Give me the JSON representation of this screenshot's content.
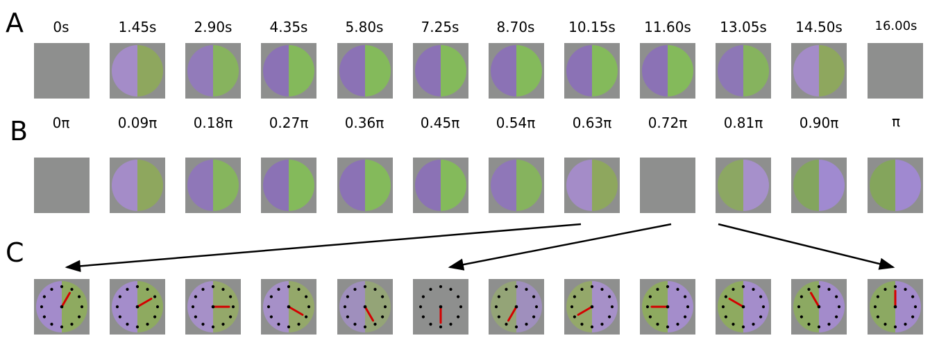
{
  "rows": [
    {
      "letter": "A",
      "labels": [
        "0s",
        "1.45s",
        "2.90s",
        "4.35s",
        "5.80s",
        "7.25s",
        "8.70s",
        "10.15s",
        "11.60s",
        "13.05s",
        "14.50s",
        "16.00s"
      ],
      "tiles": [
        {
          "left": null,
          "right": null
        },
        {
          "left": "#a48cc8",
          "right": "#8ea75e"
        },
        {
          "left": "#927bba",
          "right": "#87b35e"
        },
        {
          "left": "#8b72b5",
          "right": "#84b95b"
        },
        {
          "left": "#8b72b5",
          "right": "#84ba5b"
        },
        {
          "left": "#8b72b5",
          "right": "#84ba5b"
        },
        {
          "left": "#8b72b5",
          "right": "#84ba5b"
        },
        {
          "left": "#8b72b5",
          "right": "#84ba5b"
        },
        {
          "left": "#8b72b5",
          "right": "#84ba5b"
        },
        {
          "left": "#8d77b6",
          "right": "#86b35e"
        },
        {
          "left": "#a48cc8",
          "right": "#8ea75e"
        },
        {
          "left": null,
          "right": null
        }
      ]
    },
    {
      "letter": "B",
      "labels": [
        "0π",
        "0.09π",
        "0.18π",
        "0.27π",
        "0.36π",
        "0.45π",
        "0.54π",
        "0.63π",
        "0.72π",
        "0.81π",
        "0.90π",
        "π"
      ],
      "tiles": [
        {
          "left": null,
          "right": null
        },
        {
          "left": "#a48cc8",
          "right": "#8ea75e"
        },
        {
          "left": "#8f77b8",
          "right": "#86b55d"
        },
        {
          "left": "#8b72b5",
          "right": "#84ba5b"
        },
        {
          "left": "#8b72b5",
          "right": "#84ba5b"
        },
        {
          "left": "#8b72b5",
          "right": "#84ba5b"
        },
        {
          "left": "#8f77b8",
          "right": "#86b35e"
        },
        {
          "left": "#a48cc8",
          "right": "#8ea75e"
        },
        {
          "left": null,
          "right": null
        },
        {
          "left": "#8ca763",
          "right": "#a690cb"
        },
        {
          "left": "#83a55e",
          "right": "#a08ad0"
        },
        {
          "left": "#84a55c",
          "right": "#a089d0"
        }
      ]
    },
    {
      "letter": "C",
      "tiles": [
        {
          "left": "#a38bcb",
          "right": "#8eaa60",
          "hand_deg": 30
        },
        {
          "left": "#a48dcb",
          "right": "#8eaa60",
          "hand_deg": 60
        },
        {
          "left": "#a690c8",
          "right": "#94a86a",
          "hand_deg": 90
        },
        {
          "left": "#a690c8",
          "right": "#94a86a",
          "hand_deg": 120
        },
        {
          "left": "#9f8fbd",
          "right": "#94a477",
          "hand_deg": 150
        },
        {
          "left": null,
          "right": null,
          "hand_deg": 180
        },
        {
          "left": "#94a477",
          "right": "#9f8fbd",
          "hand_deg": 210
        },
        {
          "left": "#94a86a",
          "right": "#a690c8",
          "hand_deg": 240
        },
        {
          "left": "#8eaa60",
          "right": "#a48dcb",
          "hand_deg": 270
        },
        {
          "left": "#8eaa60",
          "right": "#a48dcb",
          "hand_deg": 300
        },
        {
          "left": "#8ca962",
          "right": "#a38bcb",
          "hand_deg": 330
        },
        {
          "left": "#8ca962",
          "right": "#a38bcb",
          "hand_deg": 0
        }
      ]
    }
  ],
  "colors": {
    "tile_bg": "#8e8f8e",
    "hand": "#d40000",
    "dots": "#000000",
    "arrows": "#000000"
  }
}
